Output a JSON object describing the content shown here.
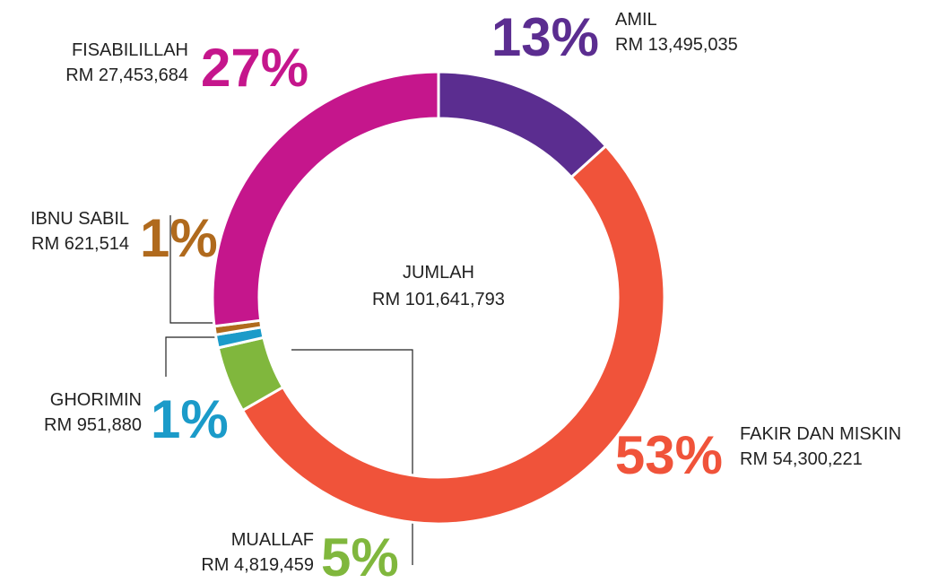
{
  "chart_data": {
    "type": "donut",
    "categories": [
      "AMIL",
      "FAKIR DAN MISKIN",
      "MUALLAF",
      "GHORIMIN",
      "IBNU SABIL",
      "FISABILILLAH"
    ],
    "values": [
      13495035,
      54300221,
      4819459,
      951880,
      621514,
      27453684
    ],
    "value_labels": [
      "RM 13,495,035",
      "RM 54,300,221",
      "RM 4,819,459",
      "RM 951,880",
      "RM 621,514",
      "RM 27,453,684"
    ],
    "percent_labels": [
      "13%",
      "53%",
      "5%",
      "1%",
      "1%",
      "27%"
    ],
    "colors": [
      "#5b2d90",
      "#f0533a",
      "#80b73d",
      "#1b9bc9",
      "#b06a1d",
      "#c5168c"
    ],
    "center_label": "JUMLAH",
    "total_label": "RM 101,641,793"
  }
}
